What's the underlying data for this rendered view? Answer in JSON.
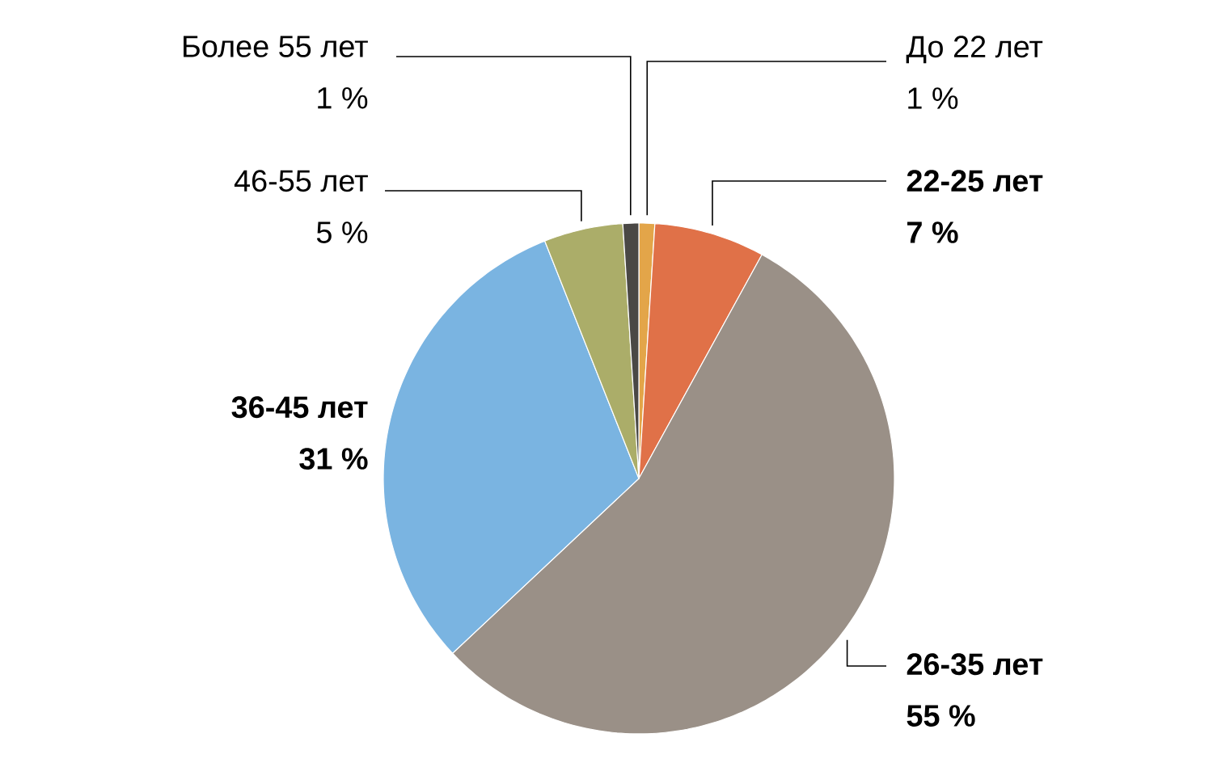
{
  "chart_data": {
    "type": "pie",
    "categories": [
      "До 22 лет",
      "22-25 лет",
      "26-35 лет",
      "36-45 лет",
      "46-55 лет",
      "Более 55 лет"
    ],
    "values": [
      1,
      7,
      55,
      31,
      5,
      1
    ],
    "colors": [
      "#e3a549",
      "#e07148",
      "#9a9087",
      "#7ab4e1",
      "#abad69",
      "#4a4845"
    ],
    "value_labels": [
      "1 %",
      "7 %",
      "55 %",
      "31 %",
      "5 %",
      "1 %"
    ]
  }
}
